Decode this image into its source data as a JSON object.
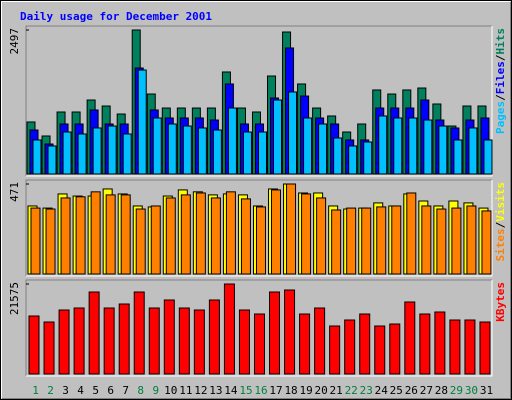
{
  "chart_data": [
    {
      "type": "bar",
      "title": "Daily usage for December 2001",
      "legend_separator": "/",
      "ylim": [
        0,
        2497
      ],
      "yticks": [
        2497
      ],
      "series": [
        {
          "name": "Hits",
          "color": "#00805c",
          "values": [
            902,
            659,
            1075,
            1075,
            1283,
            1179,
            1040,
            2497,
            1387,
            1144,
            1144,
            1144,
            1144,
            1769,
            1144,
            1075,
            1699,
            2462,
            1561,
            1144,
            1006,
            728,
            867,
            1457,
            1387,
            1457,
            1491,
            1214,
            832,
            1179,
            1179
          ]
        },
        {
          "name": "Files",
          "color": "#0000ff",
          "values": [
            763,
            520,
            867,
            867,
            1110,
            867,
            867,
            1838,
            1110,
            971,
            971,
            971,
            936,
            1561,
            867,
            867,
            1318,
            2185,
            1352,
            971,
            867,
            590,
            590,
            1144,
            1144,
            1144,
            1283,
            936,
            798,
            936,
            971
          ]
        },
        {
          "name": "Pages",
          "color": "#00c0ff",
          "values": [
            590,
            486,
            728,
            694,
            798,
            832,
            694,
            1803,
            971,
            867,
            832,
            798,
            763,
            1144,
            728,
            728,
            1283,
            1422,
            971,
            867,
            624,
            486,
            555,
            1006,
            971,
            971,
            936,
            832,
            590,
            798,
            590
          ]
        }
      ]
    },
    {
      "type": "bar",
      "legend_separator": "/",
      "ylim": [
        0,
        471
      ],
      "yticks": [
        471
      ],
      "series": [
        {
          "name": "Visits",
          "color": "#ffff00",
          "values": [
            356,
            345,
            419,
            408,
            408,
            445,
            419,
            356,
            351,
            408,
            440,
            430,
            414,
            419,
            414,
            356,
            445,
            471,
            424,
            424,
            356,
            340,
            345,
            372,
            356,
            419,
            382,
            356,
            382,
            372,
            345
          ]
        },
        {
          "name": "Sites",
          "color": "#ff8000",
          "values": [
            345,
            340,
            398,
            404,
            430,
            414,
            414,
            340,
            356,
            398,
            414,
            424,
            398,
            430,
            393,
            351,
            440,
            471,
            419,
            398,
            335,
            345,
            345,
            351,
            356,
            424,
            356,
            340,
            345,
            356,
            330
          ]
        }
      ]
    },
    {
      "type": "bar",
      "ylim": [
        0,
        21575
      ],
      "yticks": [
        21575
      ],
      "categories": [
        "1",
        "2",
        "3",
        "4",
        "5",
        "6",
        "7",
        "8",
        "9",
        "10",
        "11",
        "12",
        "13",
        "14",
        "15",
        "16",
        "17",
        "18",
        "19",
        "20",
        "21",
        "22",
        "23",
        "24",
        "25",
        "26",
        "27",
        "28",
        "29",
        "30",
        "31"
      ],
      "category_colors": [
        "#008040",
        "#008040",
        "#000000",
        "#000000",
        "#000000",
        "#000000",
        "#000000",
        "#008040",
        "#008040",
        "#000000",
        "#000000",
        "#000000",
        "#000000",
        "#000000",
        "#008040",
        "#008040",
        "#000000",
        "#000000",
        "#000000",
        "#000000",
        "#000000",
        "#008040",
        "#008040",
        "#000000",
        "#000000",
        "#000000",
        "#000000",
        "#000000",
        "#008040",
        "#008040",
        "#000000"
      ],
      "series": [
        {
          "name": "KBytes",
          "color": "#ff0000",
          "values": [
            13904,
            12466,
            15342,
            15822,
            19657,
            15822,
            16781,
            19657,
            15822,
            17740,
            15822,
            15342,
            17740,
            21575,
            15342,
            14383,
            19657,
            20136,
            14383,
            15822,
            11507,
            12945,
            14383,
            11507,
            11986,
            17261,
            14383,
            14863,
            12945,
            12945,
            12466
          ]
        }
      ]
    }
  ]
}
